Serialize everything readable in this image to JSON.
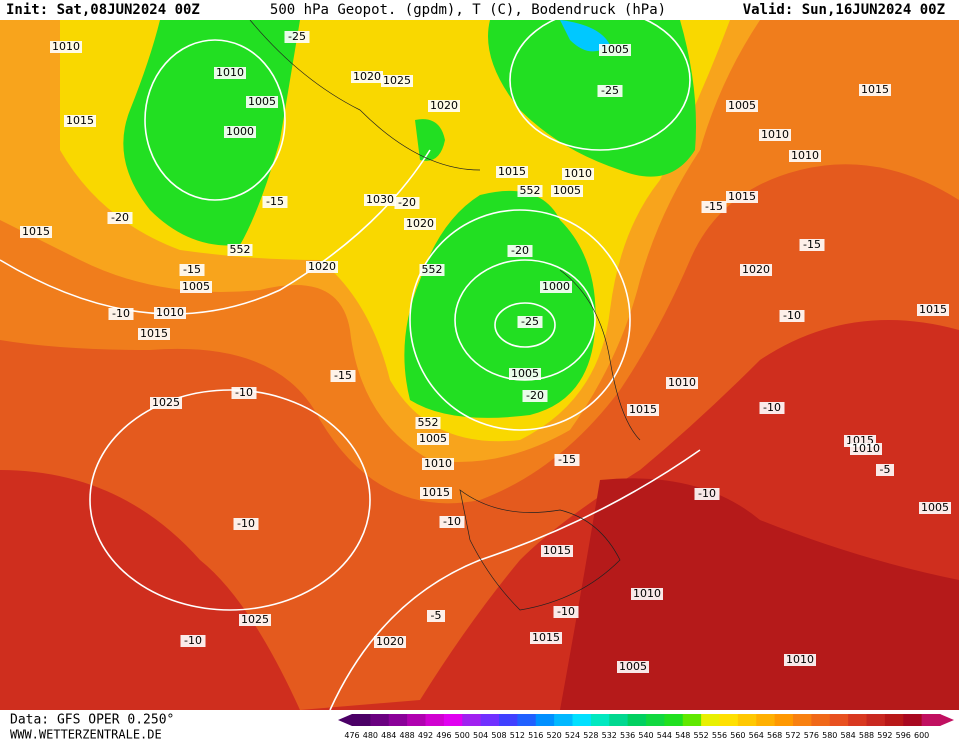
{
  "header": {
    "init": "Init: Sat,08JUN2024 00Z",
    "title": "500 hPa Geopot. (gpdm), T (C), Bodendruck (hPa)",
    "valid": "Valid: Sun,16JUN2024 00Z"
  },
  "footer": {
    "data": "Data: GFS OPER 0.250°",
    "site": "WWW.WETTERZENTRALE.DE"
  },
  "colorbar": {
    "levels": [
      476,
      480,
      484,
      488,
      492,
      496,
      500,
      504,
      508,
      512,
      516,
      520,
      524,
      528,
      532,
      536,
      540,
      544,
      548,
      552,
      556,
      560,
      564,
      568,
      572,
      576,
      580,
      584,
      588,
      592,
      596,
      600
    ],
    "colors": [
      "#4b0066",
      "#6a0080",
      "#8a0099",
      "#b000b0",
      "#d000d0",
      "#e000f0",
      "#a020f0",
      "#7030ff",
      "#4040ff",
      "#2060ff",
      "#0090ff",
      "#00b8ff",
      "#00e0ff",
      "#00e8c0",
      "#00d890",
      "#00d060",
      "#10d840",
      "#20e020",
      "#60e800",
      "#e8f000",
      "#ffe000",
      "#ffc800",
      "#ffb000",
      "#ff9800",
      "#f88010",
      "#f06818",
      "#e85020",
      "#d83820",
      "#c82820",
      "#b81818",
      "#a80820",
      "#c01060"
    ]
  },
  "map_labels": [
    "1010",
    "1010",
    "1020",
    "1025",
    "1005",
    "1020",
    "1000",
    "1005",
    "-25",
    "-25",
    "1005",
    "1010",
    "1015",
    "1010",
    "1015",
    "-20",
    "1015",
    "-15",
    "1030",
    "-20",
    "1020",
    "1015",
    "1010",
    "1005",
    "552",
    "-15",
    "1015",
    "-15",
    "1020",
    "-15",
    "1005",
    "1010",
    "-10",
    "1015",
    "-20",
    "552",
    "1020",
    "1000",
    "-25",
    "-10",
    "1015",
    "-15",
    "1005",
    "-20",
    "552",
    "1010",
    "1025",
    "-10",
    "1015",
    "-10",
    "1005",
    "1010",
    "-15",
    "1015",
    "1010",
    "-5",
    "1015",
    "-10",
    "1005",
    "-10",
    "-10",
    "1015",
    "1010",
    "-10",
    "-5",
    "1025",
    "1015",
    "-10",
    "1020",
    "1005",
    "1010",
    "552"
  ]
}
